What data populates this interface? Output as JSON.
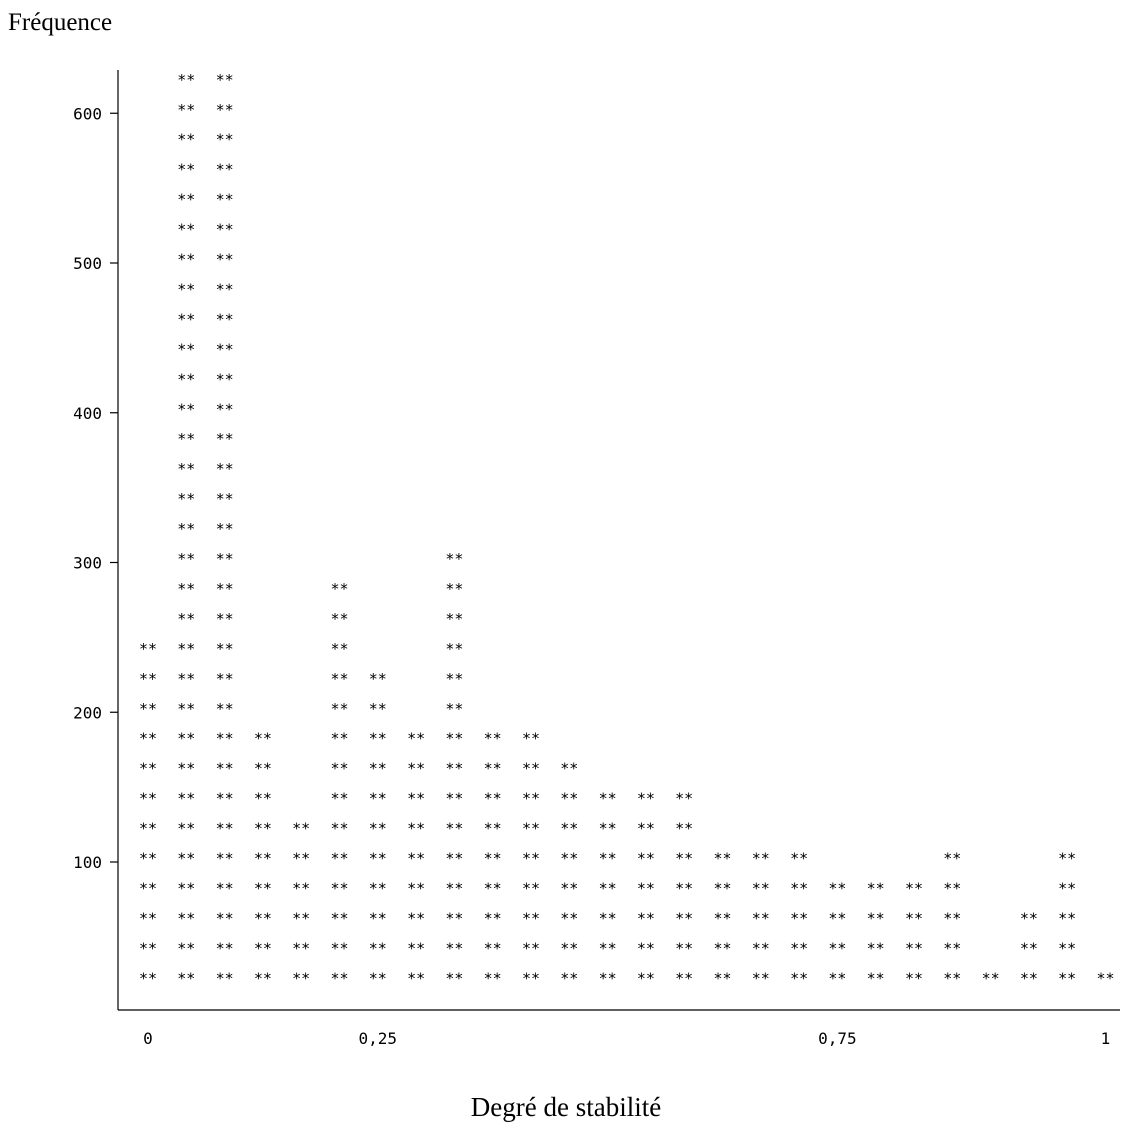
{
  "chart_data": {
    "type": "bar",
    "style": "ascii-asterisk-histogram",
    "mark_symbol": "**",
    "ylabel": "Fréquence",
    "xlabel": "Degré de stabilité",
    "ylim": [
      0,
      630
    ],
    "yticks": [
      {
        "value": 100,
        "label": "100"
      },
      {
        "value": 200,
        "label": "200"
      },
      {
        "value": 300,
        "label": "300"
      },
      {
        "value": 400,
        "label": "400"
      },
      {
        "value": 500,
        "label": "500"
      },
      {
        "value": 600,
        "label": "600"
      }
    ],
    "xticks": [
      {
        "bin": 0,
        "label": "0"
      },
      {
        "bin": 6,
        "label": "0,25"
      },
      {
        "bin": 18,
        "label": "0,75"
      },
      {
        "bin": 25,
        "label": "1"
      }
    ],
    "bins": [
      0,
      1,
      2,
      3,
      4,
      5,
      6,
      7,
      8,
      9,
      10,
      11,
      12,
      13,
      14,
      15,
      16,
      17,
      18,
      19,
      20,
      21,
      22,
      23,
      24,
      25
    ],
    "values": [
      240,
      620,
      620,
      180,
      120,
      280,
      220,
      180,
      300,
      180,
      180,
      160,
      140,
      140,
      140,
      100,
      100,
      100,
      80,
      80,
      80,
      100,
      20,
      60,
      100,
      20
    ]
  }
}
